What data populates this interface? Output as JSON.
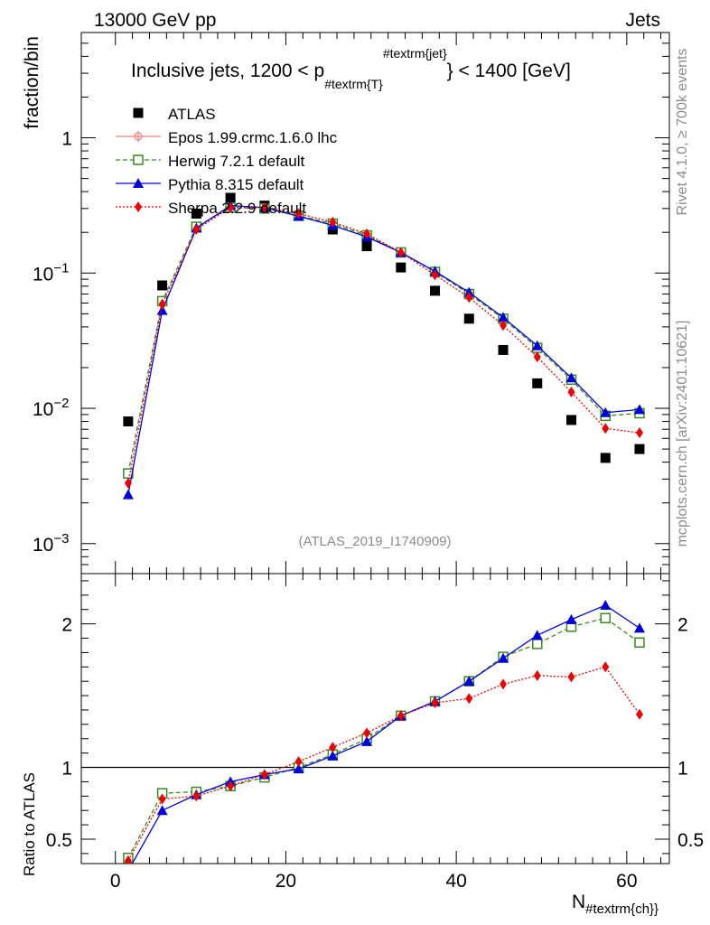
{
  "header": {
    "left": "13000 GeV pp",
    "right": "Jets"
  },
  "side_text": {
    "top": "Rivet 4.1.0, ≥ 700k events",
    "bottom": "mcplots.cern.ch [arXiv:2401.10621]"
  },
  "watermark": "(ATLAS_2019_I1740909)",
  "plot_title": {
    "prefix": "Inclusive jets, 1200 < p",
    "subscript": "#textrm{T}",
    "superscript": "#textrm{jet}",
    "suffix": "} < 1400 [GeV]"
  },
  "colors": {
    "atlas": "#000000",
    "epos": "#f08080",
    "herwig": "#3a8a1e",
    "pythia": "#0000dd",
    "sherpa": "#ee0000"
  },
  "chart_data": [
    {
      "type": "scatter",
      "title": "Inclusive jets, 1200 < p_T^jet < 1400 [GeV]",
      "ylabel": "fraction/bin",
      "yscale": "log",
      "ylim": [
        0.0006,
        6
      ],
      "xlim": [
        -4,
        65
      ],
      "y_ticks": [
        {
          "value": 0.001,
          "base": "10",
          "exp": "−3"
        },
        {
          "value": 0.01,
          "base": "10",
          "exp": "−2"
        },
        {
          "value": 0.1,
          "base": "10",
          "exp": "−1"
        },
        {
          "value": 1,
          "label": "1"
        }
      ],
      "legend": {
        "placement": "top-left",
        "entries": [
          {
            "name": "ATLAS",
            "key": "atlas"
          },
          {
            "name": "Epos 1.99.crmc.1.6.0 lhc",
            "key": "epos"
          },
          {
            "name": "Herwig 7.2.1 default",
            "key": "herwig"
          },
          {
            "name": "Pythia 8.315 default",
            "key": "pythia"
          },
          {
            "name": "Sherpa 2.2.9 default",
            "key": "sherpa"
          }
        ]
      },
      "x": [
        1.5,
        5.5,
        9.5,
        13.5,
        17.5,
        21.5,
        25.5,
        29.5,
        33.5,
        37.5,
        41.5,
        45.5,
        49.5,
        53.5,
        57.5,
        61.5
      ],
      "series": [
        {
          "name": "ATLAS",
          "values": [
            0.008,
            0.081,
            0.275,
            0.36,
            0.315,
            0.265,
            0.21,
            0.158,
            0.11,
            0.074,
            0.046,
            0.027,
            0.0153,
            0.0082,
            0.0043,
            0.005
          ]
        },
        {
          "name": "Herwig 7.2.1 default",
          "values": [
            0.0033,
            0.062,
            0.22,
            0.305,
            0.3,
            0.265,
            0.232,
            0.19,
            0.142,
            0.102,
            0.07,
            0.046,
            0.028,
            0.0163,
            0.0088,
            0.0092
          ]
        },
        {
          "name": "Pythia 8.315 default",
          "values": [
            0.0023,
            0.053,
            0.215,
            0.315,
            0.305,
            0.263,
            0.225,
            0.185,
            0.142,
            0.103,
            0.072,
            0.047,
            0.029,
            0.0168,
            0.0093,
            0.0098
          ]
        },
        {
          "name": "Sherpa 2.2.9 default",
          "values": [
            0.0028,
            0.059,
            0.21,
            0.305,
            0.305,
            0.275,
            0.238,
            0.195,
            0.142,
            0.097,
            0.066,
            0.041,
            0.024,
            0.0132,
            0.0071,
            0.0066
          ]
        }
      ]
    },
    {
      "type": "line",
      "ylabel": "Ratio to ATLAS",
      "xlabel": "N",
      "xlabel_subscript": "#textrm{ch}}",
      "ylim": [
        0.33,
        2.35
      ],
      "xlim": [
        -4,
        65
      ],
      "x_ticks": [
        0,
        20,
        40,
        60
      ],
      "y_ticks": [
        0.5,
        1,
        2
      ],
      "x": [
        1.5,
        5.5,
        9.5,
        13.5,
        17.5,
        21.5,
        25.5,
        29.5,
        33.5,
        37.5,
        41.5,
        45.5,
        49.5,
        53.5,
        57.5,
        61.5
      ],
      "series": [
        {
          "name": "Herwig 7.2.1 default",
          "values": [
            0.37,
            0.82,
            0.83,
            0.87,
            0.93,
            1.0,
            1.09,
            1.2,
            1.36,
            1.46,
            1.6,
            1.77,
            1.86,
            1.98,
            2.04,
            1.87
          ]
        },
        {
          "name": "Pythia 8.315 default",
          "values": [
            0.28,
            0.7,
            0.81,
            0.9,
            0.95,
            0.99,
            1.08,
            1.18,
            1.36,
            1.46,
            1.6,
            1.76,
            1.92,
            2.03,
            2.13,
            1.97
          ]
        },
        {
          "name": "Sherpa 2.2.9 default",
          "values": [
            0.35,
            0.78,
            0.8,
            0.87,
            0.95,
            1.04,
            1.14,
            1.24,
            1.36,
            1.45,
            1.48,
            1.58,
            1.64,
            1.63,
            1.7,
            1.37
          ]
        }
      ]
    }
  ]
}
